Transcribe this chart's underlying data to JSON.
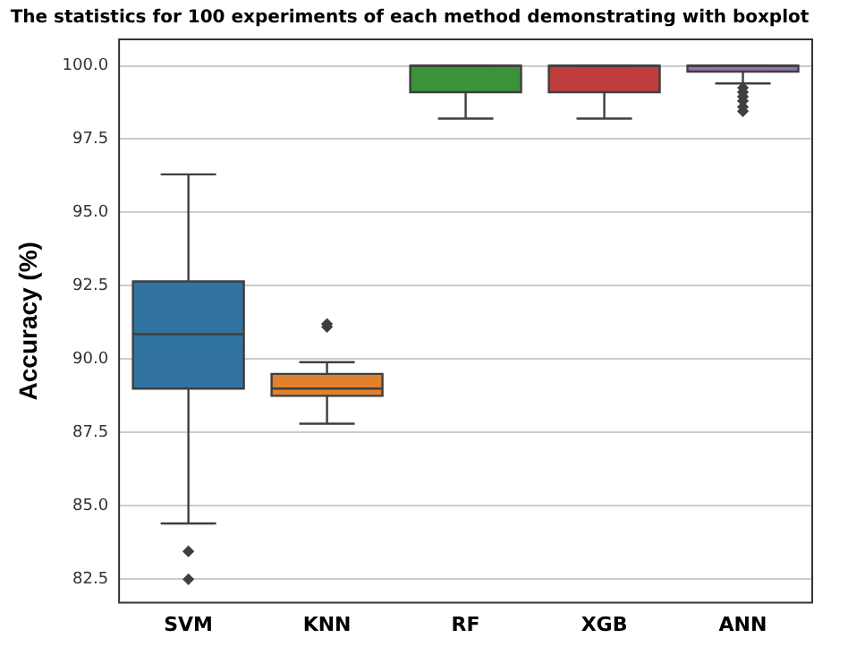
{
  "chart_data": {
    "type": "box",
    "title": "The statistics for 100 experiments of each method demonstrating with boxplot",
    "ylabel": "Accuracy (%)",
    "categories": [
      "SVM",
      "KNN",
      "RF",
      "XGB",
      "ANN"
    ],
    "colors": [
      "#3274a1",
      "#e1812c",
      "#3a923a",
      "#c03d3e",
      "#9372b2"
    ],
    "boxes": [
      {
        "low": 84.4,
        "q1": 89.0,
        "median": 90.85,
        "q3": 92.65,
        "high": 96.3,
        "outliers": [
          83.45,
          82.5
        ]
      },
      {
        "low": 87.8,
        "q1": 88.75,
        "median": 89.0,
        "q3": 89.5,
        "high": 89.9,
        "outliers": [
          91.1,
          91.2
        ]
      },
      {
        "low": 98.2,
        "q1": 99.1,
        "median": 100.0,
        "q3": 100.0,
        "high": 100.0
      },
      {
        "low": 98.2,
        "q1": 99.1,
        "median": 100.0,
        "q3": 100.0,
        "high": 100.0
      },
      {
        "low": 99.4,
        "q1": 99.8,
        "median": 100.0,
        "q3": 100.0,
        "high": 100.0,
        "outliers": [
          99.25,
          99.1,
          98.95,
          98.8,
          98.6,
          98.45
        ]
      }
    ],
    "ylim": [
      81.7,
      100.9
    ],
    "yticks": [
      {
        "value": 82.5,
        "label": "82.5"
      },
      {
        "value": 85,
        "label": "85.0"
      },
      {
        "value": 87.5,
        "label": "87.5"
      },
      {
        "value": 90,
        "label": "90.0"
      },
      {
        "value": 92.5,
        "label": "92.5"
      },
      {
        "value": 95,
        "label": "95.0"
      },
      {
        "value": 97.5,
        "label": "97.5"
      },
      {
        "value": 100,
        "label": "100.0"
      }
    ],
    "grid": "y",
    "legend": false
  }
}
